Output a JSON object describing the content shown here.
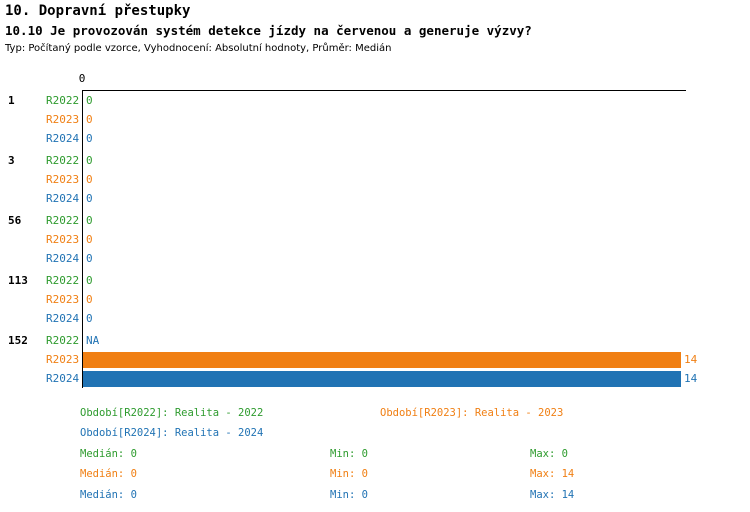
{
  "title": "10. Dopravní přestupky",
  "subtitle": "10.10 Je provozován systém detekce jízdy na červenou a generuje výzvy?",
  "meta": "Typ: Počítaný podle vzorce, Vyhodnocení: Absolutní hodnoty, Průměr: Medián",
  "colors": {
    "green": "#2e9b2e",
    "orange": "#f07f13",
    "blue": "#2173b4",
    "axis": "#000000",
    "na": "#2173b4"
  },
  "chart_data": {
    "type": "bar",
    "orientation": "horizontal",
    "title": "10.10 Je provozován systém detekce jízdy na červenou a generuje výzvy?",
    "x_axis": {
      "tick_label": "0",
      "xlim": [
        0,
        14
      ],
      "grid": false
    },
    "categories": [
      "1",
      "3",
      "56",
      "113",
      "152"
    ],
    "series": [
      {
        "name": "R2022",
        "color_key": "green",
        "values": [
          0,
          0,
          0,
          0,
          null
        ],
        "labels": [
          "0",
          "0",
          "0",
          "0",
          "NA"
        ]
      },
      {
        "name": "R2023",
        "color_key": "orange",
        "values": [
          0,
          0,
          0,
          0,
          14
        ],
        "labels": [
          "0",
          "0",
          "0",
          "0",
          "14"
        ]
      },
      {
        "name": "R2024",
        "color_key": "blue",
        "values": [
          0,
          0,
          0,
          0,
          14
        ],
        "labels": [
          "0",
          "0",
          "0",
          "0",
          "14"
        ]
      }
    ],
    "legend_position": "bottom"
  },
  "legend": [
    {
      "text": "Období[R2022]: Realita - 2022",
      "color_key": "green"
    },
    {
      "text": "Období[R2023]: Realita - 2023",
      "color_key": "orange"
    },
    {
      "text": "Období[R2024]: Realita - 2024",
      "color_key": "blue"
    }
  ],
  "stats": [
    {
      "color_key": "green",
      "median": "Medián: 0",
      "min": "Min: 0",
      "max": "Max: 0"
    },
    {
      "color_key": "orange",
      "median": "Medián: 0",
      "min": "Min: 0",
      "max": "Max: 14"
    },
    {
      "color_key": "blue",
      "median": "Medián: 0",
      "min": "Min: 0",
      "max": "Max: 14"
    }
  ]
}
